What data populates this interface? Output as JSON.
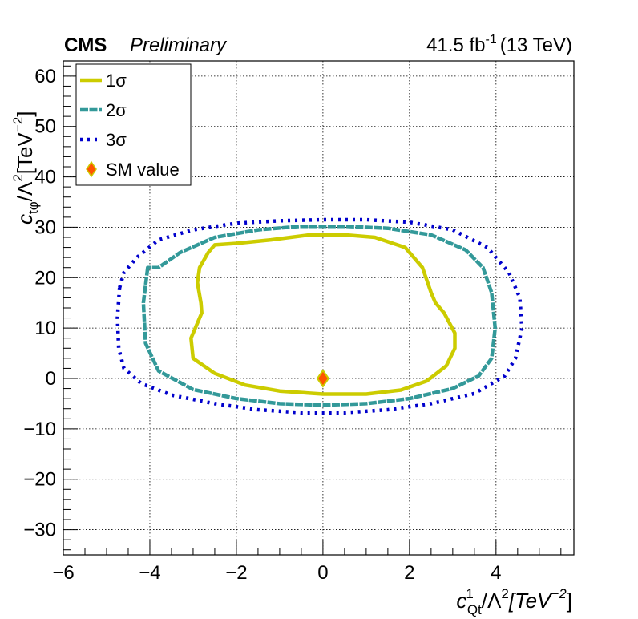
{
  "header": {
    "experiment": "CMS",
    "status": "Preliminary",
    "lumi": "41.5 fb",
    "lumi_exp": "-1",
    "energy": "(13 TeV)"
  },
  "chart_data": {
    "type": "line",
    "xlabel": {
      "base": "c",
      "sup": "1",
      "sub": "Qt",
      "rest": "/Λ",
      "rest_sup": "2",
      "unit": "[TeV",
      "unit_sup": "−2",
      "close": "]"
    },
    "ylabel": {
      "base": "c",
      "sub": "tφ",
      "rest": "/Λ",
      "rest_sup": "2",
      "unit": "[TeV",
      "unit_sup": "−2",
      "close": "]"
    },
    "xlim": [
      -6,
      5.8
    ],
    "ylim": [
      -35,
      63
    ],
    "xticks": [
      -6,
      -4,
      -2,
      0,
      2,
      4
    ],
    "xtick_labels": [
      "−6",
      "−4",
      "−2",
      "0",
      "2",
      "4"
    ],
    "yticks": [
      -30,
      -20,
      -10,
      0,
      10,
      20,
      30,
      40,
      50,
      60
    ],
    "ytick_labels": [
      "−30",
      "−20",
      "−10",
      "0",
      "10",
      "20",
      "30",
      "40",
      "50",
      "60"
    ],
    "grid": true,
    "legend_position": "top-left",
    "series": [
      {
        "name": "1σ",
        "color": "#cccc00",
        "style": "solid",
        "x": [
          -2.65,
          -2.85,
          -2.9,
          -2.82,
          -2.8,
          -3.05,
          -3.0,
          -2.5,
          -1.8,
          -1.0,
          0.0,
          1.0,
          1.8,
          2.4,
          2.85,
          3.05,
          3.05,
          2.8,
          2.6,
          2.5,
          2.3,
          1.9,
          1.2,
          0.5,
          -0.3,
          -1.2,
          -2.0,
          -2.5,
          -2.65
        ],
        "y": [
          25.0,
          22.0,
          19.0,
          15.0,
          13.0,
          8.0,
          4.0,
          1.0,
          -1.3,
          -2.5,
          -3.1,
          -3.1,
          -2.3,
          -0.5,
          2.5,
          6.0,
          9.0,
          13.0,
          15.0,
          17.0,
          22.0,
          26.0,
          28.0,
          28.5,
          28.5,
          27.5,
          26.8,
          26.5,
          25.0
        ]
      },
      {
        "name": "2σ",
        "color": "#339999",
        "style": "dashed",
        "x": [
          -4.05,
          -4.15,
          -4.1,
          -3.8,
          -3.0,
          -2.0,
          -1.0,
          0.0,
          1.0,
          2.0,
          3.0,
          3.6,
          3.9,
          3.98,
          3.9,
          3.7,
          3.3,
          2.5,
          1.5,
          0.5,
          -0.5,
          -1.5,
          -2.5,
          -3.3,
          -3.8,
          -4.05
        ],
        "y": [
          22.0,
          15.0,
          7.0,
          1.5,
          -2.2,
          -4.0,
          -5.0,
          -5.3,
          -5.0,
          -4.0,
          -2.0,
          0.5,
          4.0,
          10.0,
          17.0,
          22.0,
          25.5,
          28.5,
          29.8,
          30.2,
          30.2,
          29.5,
          28.0,
          25.0,
          22.0,
          22.0
        ]
      },
      {
        "name": "3σ",
        "color": "#0000cc",
        "style": "dotted",
        "x": [
          -4.7,
          -4.75,
          -4.72,
          -4.6,
          -4.2,
          -3.5,
          -2.5,
          -1.5,
          -0.5,
          0.5,
          1.5,
          2.5,
          3.5,
          4.2,
          4.45,
          4.6,
          4.55,
          4.3,
          3.8,
          3.0,
          2.0,
          1.0,
          0.0,
          -1.0,
          -2.0,
          -3.0,
          -3.8,
          -4.3,
          -4.6,
          -4.7
        ],
        "y": [
          18.0,
          12.0,
          6.0,
          2.0,
          -1.0,
          -3.3,
          -5.0,
          -6.2,
          -6.8,
          -6.8,
          -6.2,
          -5.0,
          -3.0,
          0.5,
          4.0,
          10.0,
          16.0,
          21.0,
          26.0,
          29.5,
          31.0,
          31.5,
          31.5,
          31.3,
          30.8,
          29.5,
          27.5,
          24.0,
          21.0,
          18.0
        ]
      }
    ],
    "points": [
      {
        "name": "SM value",
        "x": 0,
        "y": 0,
        "color": "#ff5500",
        "edge": "#cccc00"
      }
    ]
  }
}
